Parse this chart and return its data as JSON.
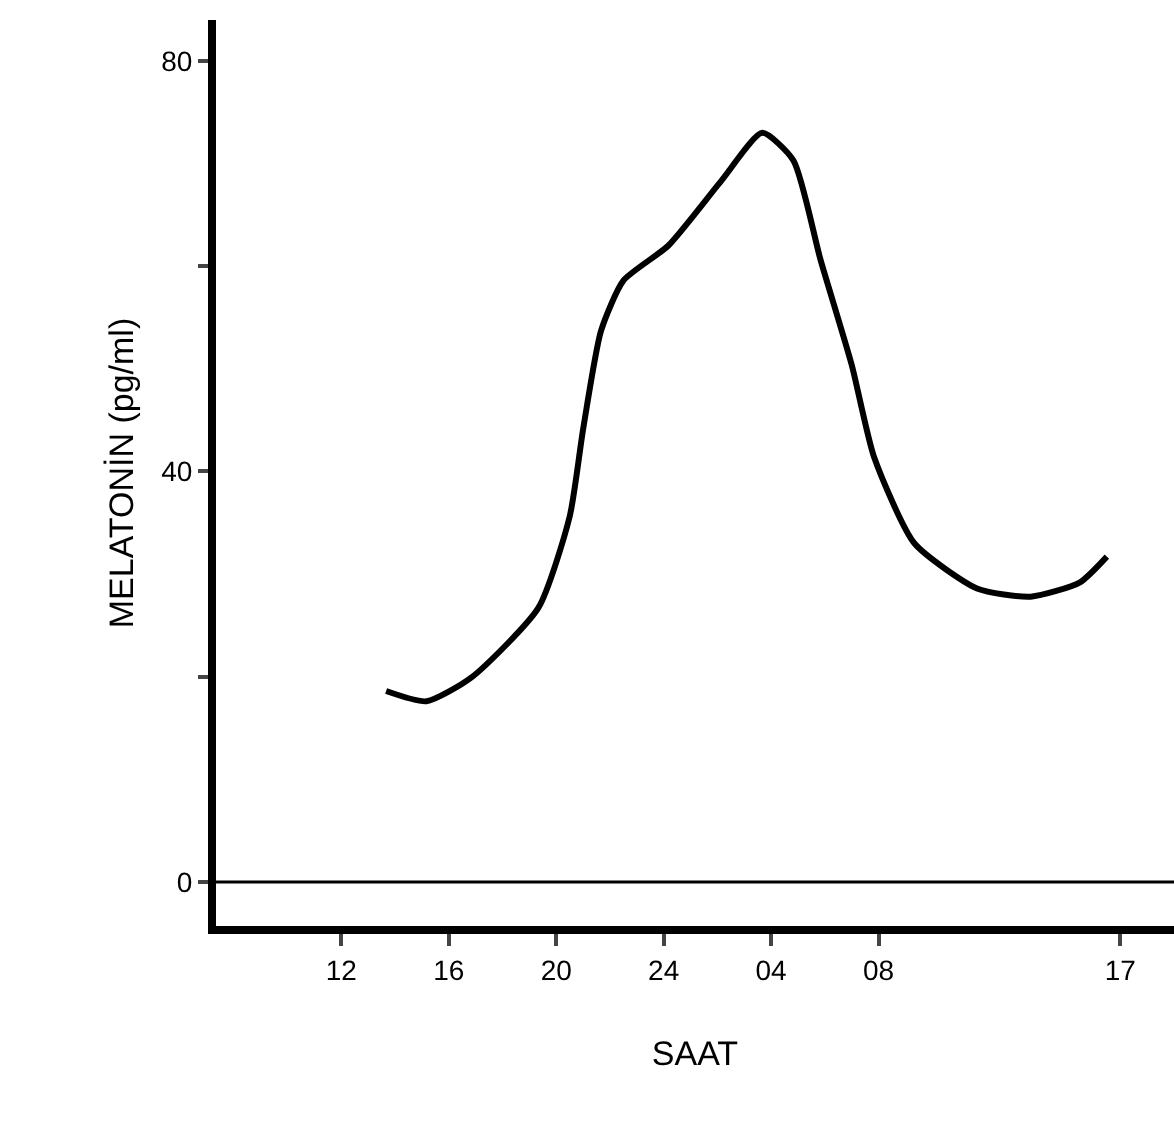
{
  "chart_data": {
    "type": "line",
    "xlabel": "SAAT",
    "ylabel": "MELATONİN (pg/ml)",
    "x": [
      "--01-01T13:40",
      "--01-01T15:10",
      "--01-01T16:50",
      "--01-01T19:20",
      "--01-01T20:30",
      "--01-01T21:00",
      "--01-01T21:40",
      "--01-01T22:30",
      "--01-02T00:10",
      "--01-02T02:10",
      "--01-02T03:40",
      "--01-02T04:50",
      "--01-02T05:50",
      "--01-02T07:00",
      "--01-02T07:50",
      "--01-02T09:20",
      "--01-02T11:40",
      "--01-02T13:40",
      "--01-02T15:30",
      "--01-02T16:30"
    ],
    "series": [
      {
        "color": "#000000",
        "values": [
          18.6,
          17.6,
          19.9,
          26.7,
          35.6,
          44.1,
          53.7,
          58.6,
          62.0,
          68.4,
          73.0,
          70.3,
          60.7,
          50.4,
          41.4,
          33.0,
          28.6,
          27.8,
          29.2,
          31.7
        ]
      }
    ],
    "xlim": [
      "--01-01T07:20",
      "--01-02T19:00"
    ],
    "ylim": [
      -4.3,
      84
    ],
    "xticks": [
      {
        "value": "--01-01T12:00",
        "label": "12"
      },
      {
        "value": "--01-01T16:00",
        "label": "16"
      },
      {
        "value": "--01-01T20:00",
        "label": "20"
      },
      {
        "value": "--01-02T00:00",
        "label": "24"
      },
      {
        "value": "--01-02T04:00",
        "label": "04"
      },
      {
        "value": "--01-02T08:00",
        "label": "08"
      },
      {
        "value": "--01-02T17:00",
        "label": "17"
      }
    ],
    "yticks": [
      0,
      {
        "value": 20,
        "label": null
      },
      40,
      {
        "value": 60,
        "label": null
      },
      80
    ],
    "ref_lines": [
      {
        "axis": "y",
        "value": 0,
        "label": null,
        "color": "#000000"
      }
    ],
    "grid": false,
    "marker": "none",
    "line_style": "solid"
  }
}
